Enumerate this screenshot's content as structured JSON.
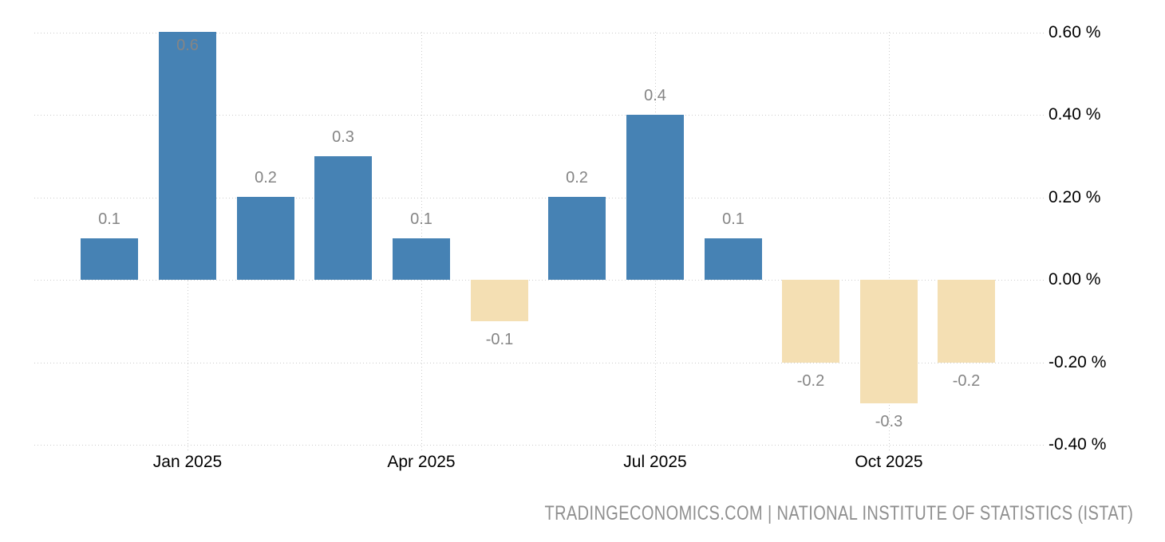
{
  "chart_data": {
    "type": "bar",
    "title": "",
    "unit": "%",
    "categories": [
      "Dec 2024",
      "Jan 2025",
      "Feb 2025",
      "Mar 2025",
      "Apr 2025",
      "May 2025",
      "Jun 2025",
      "Jul 2025",
      "Aug 2025",
      "Sep 2025",
      "Oct 2025",
      "Nov 2025"
    ],
    "values": [
      0.1,
      0.6,
      0.2,
      0.3,
      0.1,
      -0.1,
      0.2,
      0.4,
      0.1,
      -0.2,
      -0.3,
      -0.2
    ],
    "bar_labels": [
      "0.1",
      "0.6",
      "0.2",
      "0.3",
      "0.1",
      "-0.1",
      "0.2",
      "0.4",
      "0.1",
      "-0.2",
      "-0.3",
      "-0.2"
    ],
    "xlabel": "",
    "ylabel": "",
    "ylim": [
      -0.4,
      0.6
    ],
    "grid": true,
    "legend": "none",
    "y_ticks": [
      {
        "value": 0.6,
        "label": "0.60 %"
      },
      {
        "value": 0.4,
        "label": "0.40 %"
      },
      {
        "value": 0.2,
        "label": "0.20 %"
      },
      {
        "value": 0.0,
        "label": "0.00 %"
      },
      {
        "value": -0.2,
        "label": "-0.20 %"
      },
      {
        "value": -0.4,
        "label": "-0.40 %"
      }
    ],
    "x_ticks": [
      {
        "month_index": 1,
        "label": "Jan 2025"
      },
      {
        "month_index": 4,
        "label": "Apr 2025"
      },
      {
        "month_index": 7,
        "label": "Jul 2025"
      },
      {
        "month_index": 10,
        "label": "Oct 2025"
      }
    ],
    "colors": {
      "positive_bar": "#4682b4",
      "negative_bar": "#f4dfb3",
      "value_label": "#858585",
      "axis_label": "#000000",
      "gridline": "#cccccc"
    }
  },
  "footer": {
    "attribution": "TRADINGECONOMICS.COM | NATIONAL INSTITUTE OF STATISTICS (ISTAT)"
  }
}
